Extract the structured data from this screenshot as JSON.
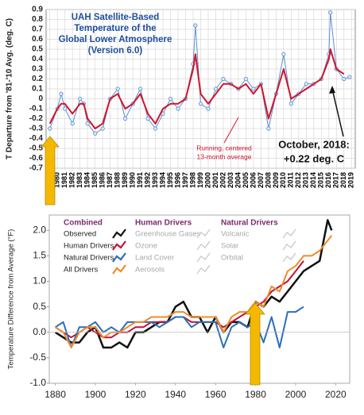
{
  "chart_data": [
    {
      "type": "line",
      "title": [
        "UAH Satellite-Based",
        "Temperature of the",
        "Global Lower Atmosphere",
        "(Version 6.0)"
      ],
      "y_label": "T Departure from '81-'10 Avg. (deg. C)",
      "annotations": [
        [
          "Running, centered",
          "13-month average"
        ],
        [
          "October, 2018:",
          "+0.22 deg. C"
        ]
      ],
      "x": [
        1979,
        1980,
        1980.5,
        1981,
        1982,
        1983,
        1983.5,
        1984,
        1985,
        1986,
        1987,
        1988,
        1989,
        1990,
        1991,
        1992,
        1993,
        1994,
        1995,
        1996,
        1997,
        1998,
        1998.3,
        1999,
        2000,
        2001,
        2002,
        2003,
        2004,
        2005,
        2006,
        2007,
        2008,
        2009,
        2010,
        2011,
        2012,
        2013,
        2014,
        2015,
        2016,
        2016.2,
        2017,
        2018,
        2018.75
      ],
      "series": [
        {
          "color": "#5b8fd0",
          "markers": true,
          "values": [
            -0.3,
            -0.1,
            0.05,
            -0.1,
            -0.25,
            0.0,
            -0.05,
            -0.25,
            -0.35,
            -0.3,
            0.0,
            0.1,
            -0.2,
            -0.05,
            0.1,
            -0.2,
            -0.3,
            -0.15,
            0.0,
            -0.1,
            0.0,
            0.35,
            0.74,
            -0.05,
            -0.1,
            0.1,
            0.2,
            0.15,
            0.1,
            0.2,
            0.1,
            0.15,
            -0.3,
            0.05,
            0.45,
            -0.05,
            0.05,
            0.15,
            0.15,
            0.2,
            0.45,
            0.87,
            0.3,
            0.2,
            0.22
          ]
        },
        {
          "color": "#d0142c",
          "markers": false,
          "values": [
            -0.25,
            -0.1,
            -0.05,
            -0.05,
            -0.15,
            -0.05,
            -0.05,
            -0.2,
            -0.3,
            -0.25,
            0.0,
            0.05,
            -0.1,
            -0.05,
            0.05,
            -0.15,
            -0.25,
            -0.1,
            -0.05,
            -0.05,
            0.0,
            0.3,
            0.45,
            0.05,
            -0.05,
            0.05,
            0.15,
            0.15,
            0.1,
            0.15,
            0.05,
            0.15,
            -0.2,
            0.05,
            0.3,
            0.0,
            0.05,
            0.1,
            0.15,
            0.2,
            0.4,
            0.5,
            0.3,
            0.25,
            null
          ]
        }
      ],
      "xlim": [
        1978.5,
        2019.5
      ],
      "ylim": [
        -0.7,
        0.9
      ],
      "xticks": [
        1979,
        1980,
        1981,
        1982,
        1983,
        1984,
        1985,
        1986,
        1987,
        1988,
        1989,
        1990,
        1991,
        1992,
        1993,
        1994,
        1995,
        1996,
        1997,
        1998,
        1999,
        2000,
        2001,
        2002,
        2003,
        2004,
        2005,
        2006,
        2007,
        2008,
        2009,
        2010,
        2011,
        2012,
        2013,
        2014,
        2015,
        2016,
        2017,
        2018,
        2019
      ],
      "yticks": [
        0.9,
        0.8,
        0.7,
        0.6,
        0.5,
        0.4,
        0.3,
        0.2,
        0.1,
        0,
        -0.1,
        -0.2,
        -0.3,
        -0.4,
        -0.5,
        -0.6,
        -0.7
      ],
      "grid": true
    },
    {
      "type": "line",
      "y_label": "Temperature Difference from Average (°F)",
      "legend_groups": [
        {
          "title": "Combined"
        },
        {
          "title": "Human Drivers",
          "entries": [
            "Greenhouse Gases",
            "Ozone",
            "Land Cover",
            "Aerosols"
          ]
        },
        {
          "title": "Natural Drivers",
          "entries": [
            "Volcanic",
            "Solar",
            "Orbital"
          ]
        }
      ],
      "x": [
        1880,
        1884,
        1888,
        1892,
        1896,
        1900,
        1904,
        1908,
        1912,
        1916,
        1920,
        1924,
        1928,
        1932,
        1936,
        1940,
        1944,
        1948,
        1952,
        1956,
        1960,
        1964,
        1968,
        1972,
        1976,
        1980,
        1984,
        1988,
        1992,
        1996,
        2000,
        2004,
        2008,
        2012,
        2016,
        2018
      ],
      "series": [
        {
          "name": "Observed",
          "color": "#111111",
          "width": 2.5,
          "values": [
            0.0,
            -0.1,
            -0.2,
            -0.2,
            0.0,
            0.1,
            -0.3,
            -0.3,
            -0.2,
            -0.3,
            0.0,
            0.0,
            0.1,
            0.2,
            0.2,
            0.5,
            0.6,
            0.3,
            0.3,
            0.0,
            0.3,
            0.0,
            0.2,
            0.2,
            0.1,
            0.6,
            0.5,
            0.7,
            0.6,
            0.8,
            1.0,
            1.2,
            1.3,
            1.4,
            2.2,
            2.0
          ]
        },
        {
          "name": "Human Drivers",
          "color": "#c0143c",
          "width": 2,
          "values": [
            0.1,
            0.0,
            -0.1,
            0.0,
            0.1,
            0.0,
            -0.1,
            -0.1,
            0.0,
            0.0,
            0.1,
            0.1,
            0.2,
            0.2,
            0.2,
            0.3,
            0.3,
            0.2,
            0.2,
            0.2,
            0.2,
            0.1,
            0.2,
            0.3,
            0.4,
            0.5,
            0.6,
            0.8,
            0.9,
            1.0,
            1.2,
            1.4,
            null,
            null,
            null,
            null
          ]
        },
        {
          "name": "Natural Drivers",
          "color": "#2a6ebb",
          "width": 2,
          "values": [
            0.1,
            0.2,
            -0.3,
            0.1,
            0.1,
            0.2,
            0.0,
            0.1,
            0.0,
            0.2,
            0.2,
            0.2,
            0.2,
            0.1,
            0.2,
            0.3,
            0.3,
            0.1,
            0.2,
            0.2,
            0.2,
            -0.3,
            0.1,
            0.2,
            0.1,
            0.2,
            -0.2,
            0.3,
            -0.3,
            0.4,
            0.4,
            0.5,
            null,
            null,
            null,
            null
          ]
        },
        {
          "name": "All Drivers",
          "color": "#f08c28",
          "width": 2,
          "values": [
            0.1,
            0.0,
            -0.3,
            0.0,
            0.1,
            0.1,
            -0.1,
            0.0,
            0.0,
            0.1,
            0.2,
            0.2,
            0.3,
            0.3,
            0.3,
            0.4,
            0.4,
            0.3,
            0.3,
            0.3,
            0.3,
            0.0,
            0.3,
            0.4,
            0.4,
            0.6,
            0.5,
            0.9,
            0.8,
            1.2,
            1.3,
            1.5,
            1.5,
            1.6,
            1.8,
            1.9
          ]
        }
      ],
      "xlim": [
        1877,
        2027
      ],
      "ylim": [
        -1.0,
        2.3
      ],
      "xticks": [
        1880,
        1900,
        1920,
        1940,
        1960,
        1980,
        2000,
        2020
      ],
      "yticks": [
        {
          "value": -1.0,
          "label": "-1.0"
        },
        -0.5,
        {
          "value": 0.0,
          "label": "0.0"
        },
        0.5,
        {
          "value": 1.0,
          "label": "1.0"
        },
        1.5,
        {
          "value": 2.0,
          "label": "2.0"
        }
      ],
      "grid": false
    }
  ]
}
